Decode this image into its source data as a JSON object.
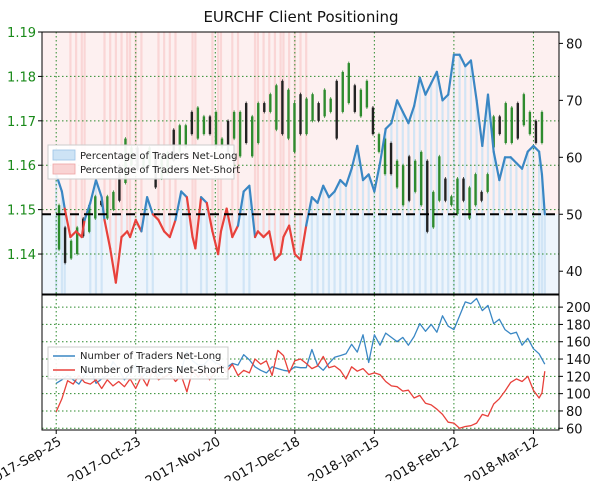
{
  "chart_data": {
    "type": "line",
    "title": "EURCHF Client Positioning",
    "colors": {
      "price_axis": "#1a8a1a",
      "net_long": "#3a87c4",
      "net_short": "#e8413b",
      "net_long_fill": "#cde3f5",
      "net_short_fill": "#f9d3d3",
      "candle_up": "#2e8b2e",
      "candle_down": "#222222",
      "neutral_line": "#000000"
    },
    "x_labels": [
      "2017-Sep-25",
      "2017-Oct-23",
      "2017-Nov-20",
      "2017-Dec-18",
      "2018-Jan-15",
      "2018-Feb-12",
      "2018-Mar-12"
    ],
    "x_range_days": [
      -5,
      177
    ],
    "top_panel": {
      "left_axis": {
        "ticks": [
          "1.14",
          "1.15",
          "1.16",
          "1.17",
          "1.18",
          "1.19"
        ],
        "ylim": [
          1.131,
          1.19
        ]
      },
      "right_axis": {
        "ticks": [
          "40",
          "50",
          "60",
          "70",
          "80"
        ],
        "ylim": [
          36,
          82
        ],
        "neutral_level": 50
      },
      "legend": {
        "position": "center-left",
        "entries": [
          "Percentage of Traders Net-Long",
          "Percentage of Traders Net-Short"
        ]
      },
      "percentage_net_long": [
        [
          0,
          57
        ],
        [
          2,
          54
        ],
        [
          3,
          51
        ],
        [
          5,
          46
        ],
        [
          7,
          47
        ],
        [
          9,
          46
        ],
        [
          10,
          49
        ],
        [
          12,
          52
        ],
        [
          14,
          56
        ],
        [
          16,
          53
        ],
        [
          17,
          49
        ],
        [
          19,
          44
        ],
        [
          21,
          38
        ],
        [
          23,
          46
        ],
        [
          25,
          47
        ],
        [
          26,
          46
        ],
        [
          28,
          49
        ],
        [
          30,
          47
        ],
        [
          32,
          53
        ],
        [
          34,
          50
        ],
        [
          36,
          49
        ],
        [
          38,
          47
        ],
        [
          40,
          46
        ],
        [
          42,
          49
        ],
        [
          44,
          54
        ],
        [
          46,
          53
        ],
        [
          48,
          46
        ],
        [
          49,
          44
        ],
        [
          51,
          53
        ],
        [
          53,
          52
        ],
        [
          55,
          47
        ],
        [
          57,
          43
        ],
        [
          58,
          47
        ],
        [
          60,
          51
        ],
        [
          62,
          46
        ],
        [
          64,
          48
        ],
        [
          66,
          54
        ],
        [
          68,
          55
        ],
        [
          70,
          46
        ],
        [
          71,
          47
        ],
        [
          73,
          46
        ],
        [
          75,
          47
        ],
        [
          77,
          42
        ],
        [
          79,
          43
        ],
        [
          80,
          46
        ],
        [
          82,
          48
        ],
        [
          84,
          43
        ],
        [
          86,
          42
        ],
        [
          88,
          48
        ],
        [
          90,
          53
        ],
        [
          92,
          52
        ],
        [
          94,
          55
        ],
        [
          96,
          53
        ],
        [
          98,
          54
        ],
        [
          100,
          56
        ],
        [
          102,
          55
        ],
        [
          104,
          58
        ],
        [
          106,
          62
        ],
        [
          108,
          56
        ],
        [
          110,
          57
        ],
        [
          112,
          54
        ],
        [
          114,
          59
        ],
        [
          116,
          65
        ],
        [
          118,
          66
        ],
        [
          120,
          70
        ],
        [
          122,
          68
        ],
        [
          124,
          66
        ],
        [
          126,
          69
        ],
        [
          128,
          74
        ],
        [
          130,
          71
        ],
        [
          132,
          73
        ],
        [
          134,
          75
        ],
        [
          136,
          70
        ],
        [
          138,
          71
        ],
        [
          140,
          78
        ],
        [
          142,
          78
        ],
        [
          144,
          76
        ],
        [
          146,
          77
        ],
        [
          148,
          70
        ],
        [
          150,
          62
        ],
        [
          152,
          71
        ],
        [
          154,
          61
        ],
        [
          156,
          56
        ],
        [
          158,
          60
        ],
        [
          160,
          60
        ],
        [
          162,
          59
        ],
        [
          164,
          58
        ],
        [
          166,
          61
        ],
        [
          168,
          62
        ],
        [
          170,
          61
        ],
        [
          171,
          57
        ],
        [
          172,
          50
        ]
      ],
      "candles": [
        [
          1.141,
          1.151
        ],
        [
          1.138,
          1.146
        ],
        [
          1.139,
          1.143
        ],
        [
          1.14,
          1.146
        ],
        [
          1.144,
          1.148
        ],
        [
          1.145,
          1.151
        ],
        [
          1.148,
          1.153
        ],
        [
          1.151,
          1.152
        ],
        [
          1.148,
          1.153
        ],
        [
          1.15,
          1.154
        ],
        [
          1.152,
          1.16
        ],
        [
          1.156,
          1.166
        ],
        [
          1.16,
          1.164
        ],
        [
          1.159,
          1.164
        ],
        [
          1.159,
          1.162
        ],
        [
          1.16,
          1.164
        ],
        [
          1.155,
          1.163
        ],
        [
          1.157,
          1.162
        ],
        [
          1.158,
          1.163
        ],
        [
          1.161,
          1.168
        ],
        [
          1.163,
          1.169
        ],
        [
          1.164,
          1.169
        ],
        [
          1.167,
          1.172
        ],
        [
          1.166,
          1.173
        ],
        [
          1.167,
          1.171
        ],
        [
          1.167,
          1.171
        ],
        [
          1.164,
          1.172
        ],
        [
          1.164,
          1.166
        ],
        [
          1.163,
          1.17
        ],
        [
          1.166,
          1.172
        ],
        [
          1.162,
          1.172
        ],
        [
          1.165,
          1.174
        ],
        [
          1.162,
          1.171
        ],
        [
          1.165,
          1.174
        ],
        [
          1.172,
          1.174
        ],
        [
          1.172,
          1.176
        ],
        [
          1.168,
          1.178
        ],
        [
          1.167,
          1.179
        ],
        [
          1.166,
          1.177
        ],
        [
          1.163,
          1.174
        ],
        [
          1.167,
          1.176
        ],
        [
          1.167,
          1.175
        ],
        [
          1.17,
          1.176
        ],
        [
          1.17,
          1.174
        ],
        [
          1.171,
          1.177
        ],
        [
          1.172,
          1.175
        ],
        [
          1.166,
          1.179
        ],
        [
          1.172,
          1.181
        ],
        [
          1.174,
          1.183
        ],
        [
          1.172,
          1.178
        ],
        [
          1.171,
          1.177
        ],
        [
          1.173,
          1.179
        ],
        [
          1.167,
          1.173
        ],
        [
          1.163,
          1.167
        ],
        [
          1.158,
          1.166
        ],
        [
          1.158,
          1.165
        ],
        [
          1.155,
          1.161
        ],
        [
          1.151,
          1.16
        ],
        [
          1.152,
          1.162
        ],
        [
          1.154,
          1.161
        ],
        [
          1.151,
          1.163
        ],
        [
          1.145,
          1.161
        ],
        [
          1.146,
          1.154
        ],
        [
          1.152,
          1.162
        ],
        [
          1.152,
          1.157
        ],
        [
          1.151,
          1.153
        ],
        [
          1.149,
          1.157
        ],
        [
          1.152,
          1.157
        ],
        [
          1.148,
          1.155
        ],
        [
          1.151,
          1.158
        ],
        [
          1.152,
          1.154
        ],
        [
          1.154,
          1.158
        ],
        [
          1.164,
          1.171
        ],
        [
          1.167,
          1.171
        ],
        [
          1.165,
          1.174
        ],
        [
          1.165,
          1.173
        ],
        [
          1.166,
          1.174
        ],
        [
          1.169,
          1.176
        ],
        [
          1.167,
          1.172
        ],
        [
          1.165,
          1.17
        ],
        [
          1.165,
          1.172
        ]
      ]
    },
    "bottom_panel": {
      "right_axis": {
        "ticks": [
          "60",
          "80",
          "100",
          "120",
          "140",
          "160",
          "180",
          "200"
        ],
        "ylim": [
          58,
          214
        ]
      },
      "legend": {
        "position": "center-left",
        "entries": [
          "Number of Traders Net-Long",
          "Number of Traders Net-Short"
        ]
      },
      "traders_net_long": [
        [
          0,
          112
        ],
        [
          2,
          116
        ],
        [
          4,
          121
        ],
        [
          6,
          116
        ],
        [
          8,
          111
        ],
        [
          10,
          121
        ],
        [
          12,
          129
        ],
        [
          14,
          112
        ],
        [
          16,
          117
        ],
        [
          18,
          121
        ],
        [
          20,
          137
        ],
        [
          22,
          128
        ],
        [
          24,
          116
        ],
        [
          26,
          124
        ],
        [
          28,
          133
        ],
        [
          30,
          118
        ],
        [
          32,
          125
        ],
        [
          34,
          129
        ],
        [
          36,
          121
        ],
        [
          38,
          126
        ],
        [
          40,
          131
        ],
        [
          42,
          127
        ],
        [
          44,
          127
        ],
        [
          46,
          149
        ],
        [
          48,
          138
        ],
        [
          50,
          133
        ],
        [
          52,
          133
        ],
        [
          54,
          141
        ],
        [
          56,
          136
        ],
        [
          58,
          133
        ],
        [
          60,
          130
        ],
        [
          62,
          135
        ],
        [
          64,
          133
        ],
        [
          66,
          145
        ],
        [
          68,
          139
        ],
        [
          70,
          131
        ],
        [
          72,
          127
        ],
        [
          74,
          124
        ],
        [
          76,
          131
        ],
        [
          78,
          129
        ],
        [
          80,
          127
        ],
        [
          82,
          126
        ],
        [
          84,
          131
        ],
        [
          86,
          130
        ],
        [
          88,
          130
        ],
        [
          90,
          151
        ],
        [
          92,
          133
        ],
        [
          94,
          127
        ],
        [
          96,
          135
        ],
        [
          98,
          142
        ],
        [
          100,
          144
        ],
        [
          102,
          146
        ],
        [
          104,
          157
        ],
        [
          106,
          148
        ],
        [
          108,
          168
        ],
        [
          110,
          136
        ],
        [
          112,
          168
        ],
        [
          114,
          156
        ],
        [
          116,
          170
        ],
        [
          118,
          165
        ],
        [
          120,
          160
        ],
        [
          122,
          165
        ],
        [
          124,
          156
        ],
        [
          126,
          166
        ],
        [
          128,
          181
        ],
        [
          130,
          172
        ],
        [
          132,
          180
        ],
        [
          134,
          171
        ],
        [
          136,
          190
        ],
        [
          138,
          178
        ],
        [
          140,
          174
        ],
        [
          142,
          190
        ],
        [
          144,
          206
        ],
        [
          146,
          204
        ],
        [
          148,
          210
        ],
        [
          150,
          196
        ],
        [
          152,
          202
        ],
        [
          154,
          181
        ],
        [
          156,
          186
        ],
        [
          158,
          174
        ],
        [
          160,
          169
        ],
        [
          162,
          171
        ],
        [
          164,
          156
        ],
        [
          166,
          164
        ],
        [
          168,
          152
        ],
        [
          170,
          146
        ],
        [
          172,
          134
        ]
      ],
      "traders_net_short": [
        [
          0,
          79
        ],
        [
          2,
          94
        ],
        [
          4,
          115
        ],
        [
          6,
          111
        ],
        [
          8,
          121
        ],
        [
          10,
          113
        ],
        [
          12,
          111
        ],
        [
          14,
          116
        ],
        [
          16,
          106
        ],
        [
          18,
          116
        ],
        [
          20,
          109
        ],
        [
          22,
          114
        ],
        [
          24,
          108
        ],
        [
          26,
          117
        ],
        [
          28,
          106
        ],
        [
          30,
          120
        ],
        [
          32,
          109
        ],
        [
          34,
          128
        ],
        [
          36,
          116
        ],
        [
          38,
          119
        ],
        [
          40,
          123
        ],
        [
          42,
          114
        ],
        [
          44,
          121
        ],
        [
          46,
          102
        ],
        [
          48,
          127
        ],
        [
          50,
          119
        ],
        [
          52,
          127
        ],
        [
          54,
          116
        ],
        [
          56,
          125
        ],
        [
          58,
          133
        ],
        [
          60,
          125
        ],
        [
          62,
          134
        ],
        [
          64,
          121
        ],
        [
          66,
          127
        ],
        [
          68,
          124
        ],
        [
          70,
          140
        ],
        [
          72,
          134
        ],
        [
          74,
          138
        ],
        [
          76,
          121
        ],
        [
          78,
          150
        ],
        [
          80,
          144
        ],
        [
          82,
          124
        ],
        [
          84,
          138
        ],
        [
          86,
          140
        ],
        [
          88,
          135
        ],
        [
          90,
          129
        ],
        [
          92,
          132
        ],
        [
          94,
          143
        ],
        [
          96,
          130
        ],
        [
          98,
          132
        ],
        [
          100,
          127
        ],
        [
          102,
          117
        ],
        [
          104,
          131
        ],
        [
          106,
          126
        ],
        [
          108,
          129
        ],
        [
          110,
          122
        ],
        [
          112,
          124
        ],
        [
          114,
          122
        ],
        [
          116,
          114
        ],
        [
          118,
          109
        ],
        [
          120,
          108
        ],
        [
          122,
          103
        ],
        [
          124,
          104
        ],
        [
          126,
          95
        ],
        [
          128,
          98
        ],
        [
          130,
          89
        ],
        [
          132,
          87
        ],
        [
          134,
          82
        ],
        [
          136,
          76
        ],
        [
          138,
          67
        ],
        [
          140,
          66
        ],
        [
          142,
          60
        ],
        [
          144,
          62
        ],
        [
          146,
          63
        ],
        [
          148,
          66
        ],
        [
          150,
          76
        ],
        [
          152,
          74
        ],
        [
          154,
          88
        ],
        [
          156,
          94
        ],
        [
          158,
          103
        ],
        [
          160,
          113
        ],
        [
          162,
          117
        ],
        [
          164,
          114
        ],
        [
          166,
          120
        ],
        [
          168,
          104
        ],
        [
          170,
          95
        ],
        [
          171,
          101
        ],
        [
          172,
          126
        ]
      ]
    }
  }
}
